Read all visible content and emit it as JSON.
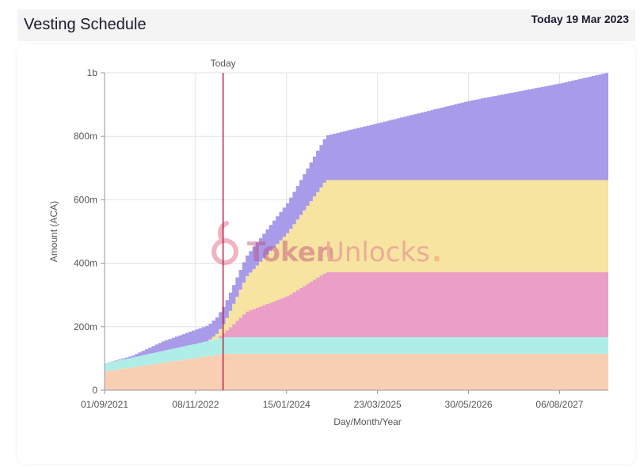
{
  "header": {
    "title": "Vesting Schedule",
    "today_label": "Today 19 Mar 2023"
  },
  "watermark": {
    "text_bold": "Token",
    "text_light": "Unlocks",
    "dot": "."
  },
  "chart_data": {
    "type": "area",
    "stacked": true,
    "xlabel": "Day/Month/Year",
    "ylabel": "Amount (ACA)",
    "ylim": [
      0,
      1000000000
    ],
    "yticks": [
      0,
      200000000,
      400000000,
      600000000,
      800000000,
      1000000000
    ],
    "ytick_labels": [
      "0",
      "200m",
      "400m",
      "600m",
      "800m",
      "1b"
    ],
    "xlim": [
      "2021-09-01",
      "2028-03-25"
    ],
    "xticks": [
      "2021-09-01",
      "2022-11-08",
      "2024-01-15",
      "2025-03-23",
      "2026-05-30",
      "2027-08-06"
    ],
    "xtick_labels": [
      "01/09/2021",
      "08/11/2022",
      "15/01/2024",
      "23/03/2025",
      "30/05/2026",
      "06/08/2027"
    ],
    "grid": true,
    "today_marker": {
      "date": "2023-03-19",
      "label": "Today",
      "color": "#b5193f"
    },
    "series": [
      {
        "color": "#f9cfb4",
        "points": [
          [
            "2021-09-01",
            60000000
          ],
          [
            "2023-03-19",
            115000000
          ],
          [
            "2028-03-25",
            115000000
          ]
        ],
        "step": true
      },
      {
        "color": "#aeeee6",
        "points": [
          [
            "2021-09-01",
            25000000
          ],
          [
            "2022-11-08",
            45000000
          ],
          [
            "2023-03-19",
            52000000
          ],
          [
            "2028-03-25",
            52000000
          ]
        ],
        "step": true
      },
      {
        "color": "#eb9fc7",
        "points": [
          [
            "2021-09-01",
            0
          ],
          [
            "2023-02-10",
            0
          ],
          [
            "2023-03-19",
            15000000
          ],
          [
            "2023-07-01",
            80000000
          ],
          [
            "2024-01-15",
            130000000
          ],
          [
            "2024-07-15",
            205000000
          ],
          [
            "2028-03-25",
            205000000
          ]
        ],
        "step": true
      },
      {
        "color": "#f6e4a0",
        "points": [
          [
            "2021-09-01",
            0
          ],
          [
            "2023-01-01",
            0
          ],
          [
            "2023-03-19",
            30000000
          ],
          [
            "2023-07-01",
            110000000
          ],
          [
            "2024-01-15",
            200000000
          ],
          [
            "2024-07-15",
            290000000
          ],
          [
            "2028-03-25",
            290000000
          ]
        ],
        "step": true
      },
      {
        "color": "#a89be9",
        "points": [
          [
            "2021-09-01",
            0
          ],
          [
            "2022-01-01",
            5000000
          ],
          [
            "2022-06-01",
            30000000
          ],
          [
            "2022-11-08",
            45000000
          ],
          [
            "2023-01-15",
            50000000
          ],
          [
            "2023-03-19",
            55000000
          ],
          [
            "2023-07-01",
            65000000
          ],
          [
            "2024-01-15",
            95000000
          ],
          [
            "2024-07-15",
            140000000
          ],
          [
            "2025-03-23",
            180000000
          ],
          [
            "2026-05-30",
            250000000
          ],
          [
            "2027-08-06",
            305000000
          ],
          [
            "2028-03-25",
            340000000
          ]
        ],
        "step": true
      }
    ]
  }
}
